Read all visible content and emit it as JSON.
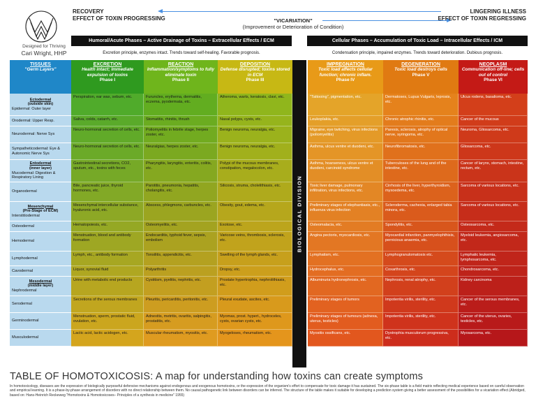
{
  "header": {
    "logo_tagline": "Designed for Thriving",
    "logo_name": "Cari Wright, HHP",
    "left_title_1": "RECOVERY",
    "left_title_2": "EFFECT OF TOXIN PROGRESSING",
    "mid_title": "\"VICARIATION\"",
    "mid_sub": "(Improvement or Deterioration of Condition)",
    "right_title_1": "LINGERING ILLNESS",
    "right_title_2": "EFFECT OF TOXIN REGRESSING"
  },
  "banners": {
    "left": "Humoral/Acute Phases – Active Drainage of Toxins – Extracellular Effects / ECM",
    "right": "Cellular Phases – Accumulation of Toxic Load – Intracellular Effects / ICM",
    "left_sub": "Excretion principle, enzymes intact. Trends toward self-healing. Favorable prognosis.",
    "right_sub": "Condensation principle, impaired enzymes. Trends toward deterioration. Dubious prognosis."
  },
  "divider_label": "BIOLOGICAL DIVISION",
  "colors": {
    "tissue_header": "#1f87c8",
    "tissue_col": "#b9d9ee",
    "col1_header": "#2f9a1f",
    "col2_header": "#6fb51c",
    "col3_header": "#c7b814",
    "col4_header": "#e89a18",
    "col5_header": "#e07a12",
    "col6_header": "#c41a16"
  },
  "columns": [
    {
      "title": "EXCRETION",
      "desc": "Health intact; Immediate expulsion of toxins",
      "phase": "Phase I"
    },
    {
      "title": "REACTION",
      "desc": "Inflammation/symptoms to fully eliminate toxin",
      "phase": "Phase II"
    },
    {
      "title": "DEPOSITION",
      "desc": "Defense disrupted; toxins stored in ECM",
      "phase": "Phase III"
    },
    {
      "title": "IMPREGNATION",
      "desc": "Toxic load affects cellular function; chronic inflam.",
      "phase": "Phase IV"
    },
    {
      "title": "DEGENERATION",
      "desc": "Toxic load destroys cells",
      "phase": "Phase V"
    },
    {
      "title": "NEOPLASM",
      "desc": "Communication off-line; cells out of control",
      "phase": "Phase VI"
    }
  ],
  "tissues_header": {
    "title": "TISSUES",
    "sub": "\"Germ Layers\""
  },
  "rows": [
    {
      "t_bold": "Ectodermal",
      "t_sub": "(outside skin)",
      "t_plain": "Epidermal: Outer layer",
      "cells": [
        "Perspiration, ear wax, sebum, etc.",
        "Furuncles, erythema, dermatitis, eczema, pyodermata, etc.",
        "Atheroma, warts, keratosis, clavi, etc.",
        "\"Tattooing\", pigmentation, etc.",
        "Dermatoses, Lupus Vulgaris, leprosis, etc.",
        "Ulcus rodens, basalioma, etc."
      ]
    },
    {
      "t_bold": "",
      "t_sub": "",
      "t_plain": "Orodermal: Upper Resp.",
      "cells": [
        "Saliva, colds, catarrh, etc.",
        "Stomatitis, rhinitis, thrush",
        "Nasal polyps, cysts, etc.",
        "Leukoplakia, etc.",
        "Chronic atrophic rhinitis, etc.",
        "Cancer of the mucous"
      ]
    },
    {
      "t_bold": "",
      "t_sub": "",
      "t_plain": "Neurodermal: Nerve Sys",
      "cells": [
        "Neuro-hormonal secretion of cells, etc.",
        "Poliomyelitis in febrile stage, herpes zoster, etc.",
        "Benign neuroma, neuralgia, etc.",
        "Migraine, eye twitching, virus infections (poliomyelitis)",
        "Paresis, sclerosis, atrophy of optical nerve, syringoma, etc.",
        "Neuroma, Gliosarcoma, etc."
      ]
    },
    {
      "t_bold": "",
      "t_sub": "",
      "t_plain": "Sympatheticodermal: Eye & Autonomic Nerve Sys",
      "cells": [
        "Neuro-hormonal secretion of cells, etc.",
        "Neuralgias, herpes zoster, etc.",
        "Benign neuroma, neuralgia, etc.",
        "Asthma, ulcus ventre et duodeni, etc.",
        "Neurofibromatosis, etc.",
        "Gliosarcoma, etc."
      ]
    },
    {
      "t_bold": "Entodermal",
      "t_sub": "(inner layer)",
      "t_plain": "Mucodermal: Digestion & Respiratory Lining",
      "cells": [
        "Gastrointestinal secretions, CO2, sputum, etc., toxins with feces",
        "Pharyngitis, laryngitis, enteritis, colitis, etc.",
        "Polypi of the mucous membranes, constipation, megalocolon, etc.",
        "Asthma, hoarseness, ulcus ventre et duodeni, carcinoid syndrome",
        "Tuberculoses of the lung and of the intestine, etc.",
        "Cancer of larynx, stomach, intestine, rectum, etc."
      ]
    },
    {
      "t_bold": "",
      "t_sub": "",
      "t_plain": "Organodermal",
      "cells": [
        "Bile, pancreatic juice, thyroid hormones, etc.",
        "Parotitis, pneumonia, hepatitis, cholangitis, etc.",
        "Silicosis, struma, cholelithiasis, etc.",
        "Toxic liver damage, pulmonary infiltration, virus infections, etc.",
        "Cirrhosis of the liver, hyperthyroidism, myxoedema, etc.",
        "Sarcoma of various locations, etc."
      ]
    },
    {
      "t_bold": "Mesenchymal",
      "t_sub": "(Pre-Stage of ECM)",
      "t_plain": "Interstitiodermal",
      "cells": [
        "Mesenchymal intercellular substance, hyaluronic acid, etc.",
        "Abscess, phlegmons, carbuncles, etc.",
        "Obesity, gout, edema, etc.",
        "Preliminary stages of elephantiasis, etc., influenza virus infection",
        "Scleroderma, cachexia, enlarged tabia minora, etc.",
        "Sarcoma of various locations, etc."
      ]
    },
    {
      "t_bold": "",
      "t_sub": "",
      "t_plain": "Osteodermal",
      "cells": [
        "Hematopoiesis, etc.",
        "Osteomyelitis, etc.",
        "Exotose, etc.",
        "Osteomalacia, etc.",
        "Spondylitis, etc.",
        "Osteosarcoma, etc."
      ]
    },
    {
      "t_bold": "",
      "t_sub": "",
      "t_plain": "Hemodermal",
      "cells": [
        "Menstruation, blood and antibody formation",
        "Endocarditis, typhoid fever, sepsis, embolism",
        "Varicose veins, thrombosis, sclerosis, etc.",
        "Angina pectoris, myocardiosis, etc.",
        "Myocardial infarction, panmyelophthisis, pernicious anaemia, etc.",
        "Myeloid leukemia, angiosarcoma, etc."
      ]
    },
    {
      "t_bold": "",
      "t_sub": "",
      "t_plain": "Lymphodermal",
      "cells": [
        "Lymph, etc., antibody formation",
        "Tonsilitis, appendicitis, etc.",
        "Swelling of the lymph glands, etc.",
        "Lymphatism, etc.",
        "Lymphogranulomatosis etc.",
        "Lymphatic leukemia, lymphosarcoma, etc."
      ]
    },
    {
      "t_bold": "",
      "t_sub": "",
      "t_plain": "Cavodermal",
      "cells": [
        "Liquor, synovial fluid",
        "Polyarthritis",
        "Dropsy, etc.",
        "Hydrocephalus, etc.",
        "Coxarthrosis, etc.",
        "Chondrosarcoma, etc."
      ]
    },
    {
      "t_bold": "Mesodermal",
      "t_sub": "(middle layer)",
      "t_plain": "Nephrodermal",
      "cells": [
        "Urine with metabolic end products",
        "Cystitism, pyelitis, nephritis, etc.",
        "Prostate hypertrophia, nephrolithiasis, etc.",
        "Albuminuria hydronephrosis, etc.",
        "Nephrosis, renal atrophy, etc.",
        "Kidney carcinoma"
      ]
    },
    {
      "t_bold": "",
      "t_sub": "",
      "t_plain": "Serodermal",
      "cells": [
        "Secretions of the serous membranes",
        "Pleuritis, pericarditis, peritonitis, etc.",
        "Pleural exudate, ascites, etc.",
        "Preliminary stages of tumors",
        "Impotentia virilis, sterility, etc.",
        "Cancer of the serous membranes, etc."
      ]
    },
    {
      "t_bold": "",
      "t_sub": "",
      "t_plain": "Germinodermal",
      "cells": [
        "Menstruation, sperm, prostatic fluid, ovulation, etc.",
        "Adnexitis, metritis, ovaritis, salpingitis, prostatitis, etc.",
        "Myomas, prost. hypert., hydroceles, cysts, ovarian cysts, etc.",
        "Preliminary stages of tumours (adnexa, uterus, testicles)",
        "Impotentia virilis, sterility, etc.",
        "Cancer of the uterus, ovaries, testicles, etc."
      ]
    },
    {
      "t_bold": "",
      "t_sub": "",
      "t_plain": "Musculodermal",
      "cells": [
        "Lactic acid, lactic acidogen, etc.",
        "Muscular rheumatism, myositis, etc.",
        "Myogeloses, rheumatism, etc.",
        "Myositis ossificans, etc.",
        "Dystrophia musculorum progressiva, etc.",
        "Myosarcoma, etc."
      ]
    }
  ],
  "footer": {
    "title": "TABLE OF HOMOTOXICOSIS: A map for understanding how toxins can create symptoms",
    "text": "In homotoxicology, diseases are the expression of biologically purposeful defensive mechanisms against endogenous and exogenous homotoxins, or the expression of the organism's effort to compensate for toxic damage it has sustained. The six-phase table is a field matrix reflecting medical experience based on careful observation and empirical learning. It is a phase-by-phase arrangement of disorders with no direct relationship between them. No causal pathogenetic link between disorders can be inferred. The structure of the table makes it suitable for developing a prediction system giving a better assessment of the possibilities for a vicariation effect.(Abridged, based on: Hans-Heinrich Reckeweg \"Homotoxins & Homotoxicoses– Principles of a synthesis in medicine\" 1955)"
  }
}
